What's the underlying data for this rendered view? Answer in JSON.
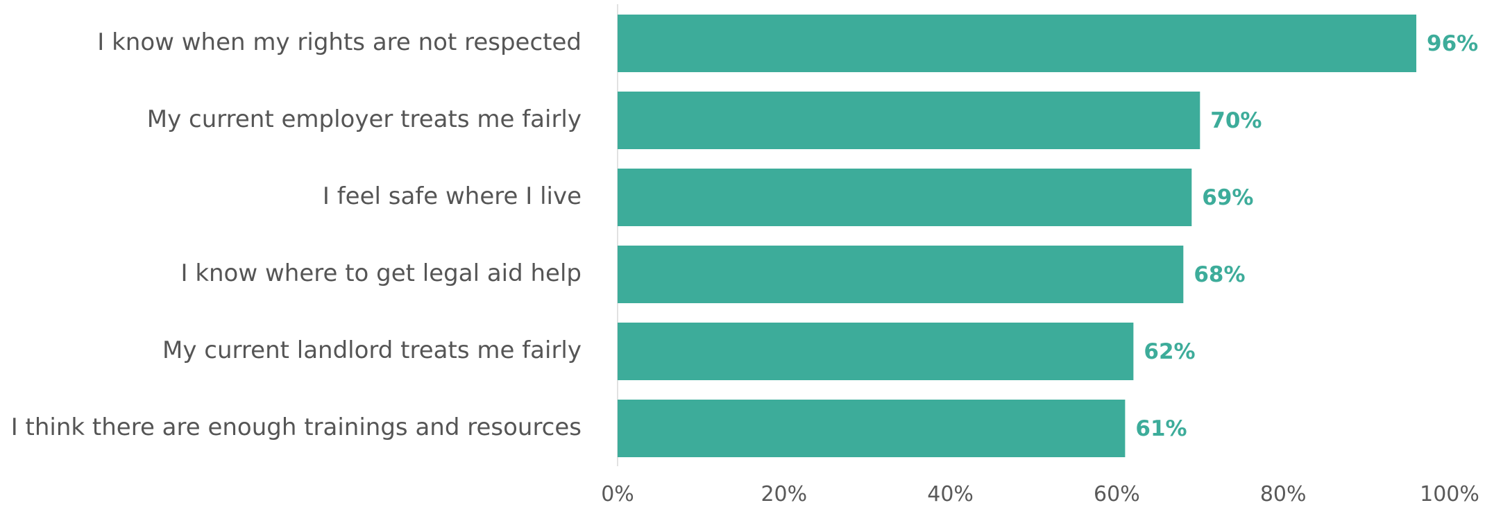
{
  "colors": {
    "bar": "#3DAC9A",
    "value_label": "#3DAC9A",
    "category_label": "#555555",
    "axis_line": "#D9D9D9",
    "tick_label": "#595959"
  },
  "chart_data": {
    "type": "bar",
    "orientation": "horizontal",
    "categories": [
      "I know when my rights are not respected",
      "My current employer treats me fairly",
      "I feel safe where I live",
      "I know where to get legal aid help",
      "My current landlord treats me fairly",
      "I think there are enough trainings and resources"
    ],
    "values": [
      96,
      70,
      69,
      68,
      62,
      61
    ],
    "value_labels": [
      "96%",
      "70%",
      "69%",
      "68%",
      "62%",
      "61%"
    ],
    "xlim": [
      0,
      100
    ],
    "x_ticks": [
      0,
      20,
      40,
      60,
      80,
      100
    ],
    "x_tick_labels": [
      "0%",
      "20%",
      "40%",
      "60%",
      "80%",
      "100%"
    ],
    "grid": false,
    "legend": "none",
    "title": "",
    "xlabel": "",
    "ylabel": ""
  }
}
